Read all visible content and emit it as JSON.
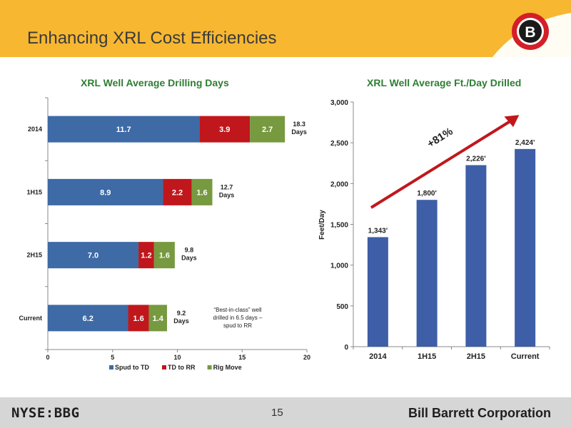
{
  "header": {
    "title": "Enhancing XRL Cost Efficiencies",
    "logo_letter": "B",
    "colors": {
      "banner": "#f7b731",
      "logo_red": "#d32027"
    }
  },
  "chart_data": [
    {
      "type": "bar",
      "orientation": "horizontal",
      "stacked": true,
      "title": "XRL Well Average Drilling Days",
      "categories": [
        "2014",
        "1H15",
        "2H15",
        "Current"
      ],
      "series": [
        {
          "name": "Spud to TD",
          "color": "#3e6aa6",
          "values": [
            11.7,
            8.9,
            7.0,
            6.2
          ],
          "labels": [
            "11.7",
            "8.9",
            "7.0",
            "6.2"
          ]
        },
        {
          "name": "TD to RR",
          "color": "#c0171c",
          "values": [
            3.9,
            2.2,
            1.2,
            1.6
          ],
          "labels": [
            "3.9",
            "2.2",
            "1.2",
            "1.6"
          ]
        },
        {
          "name": "Rig Move",
          "color": "#77993f",
          "values": [
            2.7,
            1.6,
            1.6,
            1.4
          ],
          "labels": [
            "2.7",
            "1.6",
            "1.6",
            "1.4"
          ]
        }
      ],
      "totals": [
        [
          "18.3",
          "Days"
        ],
        [
          "12.7",
          "Days"
        ],
        [
          "9.8",
          "Days"
        ],
        [
          "9.2",
          "Days"
        ]
      ],
      "annotation": [
        "“Best-in-class” well",
        "drilled in 6.5 days –",
        "spud to RR"
      ],
      "xlim": [
        0,
        20
      ],
      "xticks": [
        "0",
        "5",
        "10",
        "15",
        "20"
      ],
      "legend_position": "bottom",
      "grid": false
    },
    {
      "type": "bar",
      "title": "XRL Well Average Ft./Day Drilled",
      "categories": [
        "2014",
        "1H15",
        "2H15",
        "Current"
      ],
      "values": [
        1343,
        1800,
        2226,
        2424
      ],
      "labels": [
        "1,343'",
        "1,800'",
        "2,226'",
        "2,424'"
      ],
      "ylabel": "Feet/Day",
      "ylim": [
        0,
        3000
      ],
      "yticks": [
        "0",
        "500",
        "1,000",
        "1,500",
        "2,000",
        "2,500",
        "3,000"
      ],
      "bar_color": "#3e5ea7",
      "annotation": "+81%",
      "arrow_color": "#c0171c",
      "grid": false
    }
  ],
  "footer": {
    "ticker": "NYSE:BBG",
    "page_number": "15",
    "company": "Bill Barrett Corporation"
  }
}
